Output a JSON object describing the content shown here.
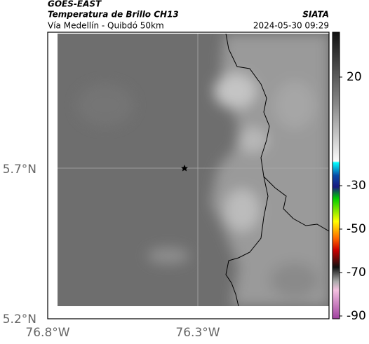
{
  "header": {
    "source": "GOES-EAST",
    "title": "Temperatura de Brillo CH13",
    "subtitle": "Vía Medellín - Quibdó 50km",
    "agency": "SIATA",
    "timestamp": "2024-05-30 09:29"
  },
  "map": {
    "lat_labels": [
      "5.7°N",
      "5.2°N"
    ],
    "lon_labels": [
      "76.8°W",
      "76.3°W"
    ]
  },
  "colorbar": {
    "ticks": [
      20,
      -30,
      -50,
      -70,
      -90
    ]
  }
}
